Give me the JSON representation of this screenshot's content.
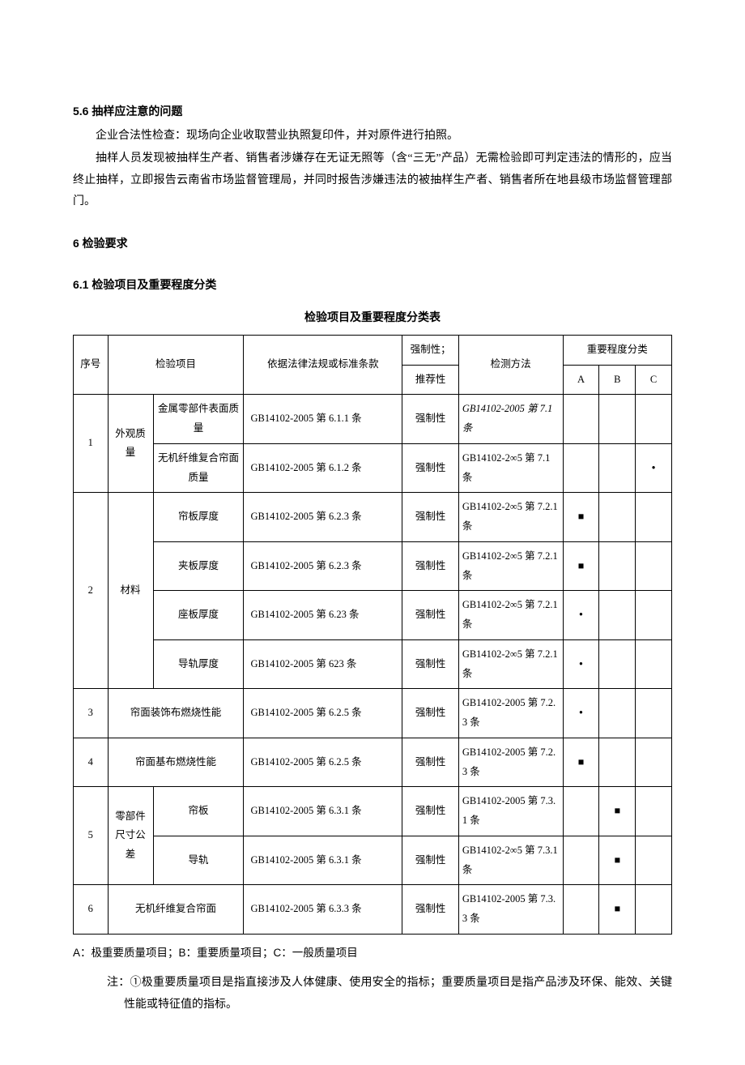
{
  "sections": {
    "s56_heading": "5.6  抽样应注意的问题",
    "s56_p1": "企业合法性检查：现场向企业收取营业执照复印件，并对原件进行拍照。",
    "s56_p2": "抽样人员发现被抽样生产者、销售者涉嫌存在无证无照等（含“三无”产品）无需检验即可判定违法的情形的，应当终止抽样，立即报告云南省市场监督管理局，并同时报告涉嫌违法的被抽样生产者、销售者所在地县级市场监督管理部门。",
    "s6_heading": "6 检验要求",
    "s61_heading": "6.1  检验项目及重要程度分类",
    "table_title": "检验项目及重要程度分类表"
  },
  "table": {
    "headers": {
      "idx": "序号",
      "item": "检验项目",
      "basis": "依据法律法规或标准条款",
      "type_top": "强制性；",
      "type_bot": "推荐性",
      "method": "检测方法",
      "importance": "重要程度分类",
      "a": "A",
      "b": "B",
      "c": "C"
    },
    "rows": [
      {
        "idx": "1",
        "cat": "外观质量",
        "sub": "金属零部件表面质量",
        "basis": "GB14102-2005 第 6.1.1 条",
        "type": "强制性",
        "method": "GB14102-2005 第 7.1 条",
        "a": "",
        "b": "",
        "c": ""
      },
      {
        "idx": "",
        "cat": "",
        "sub": "无机纤维复合帘面质量",
        "basis": "GB14102-2005 第 6.1.2 条",
        "type": "强制性",
        "method": "GB14102-2∞5 第 7.1 条",
        "a": "",
        "b": "",
        "c": "•"
      },
      {
        "idx": "2",
        "cat": "材料",
        "sub": "帘板厚度",
        "basis": "GB14102-2005 第 6.2.3 条",
        "type": "强制性",
        "method": "GB14102-2∞5 第 7.2.1 条",
        "a": "■",
        "b": "",
        "c": ""
      },
      {
        "idx": "",
        "cat": "",
        "sub": "夹板厚度",
        "basis": "GB14102-2005 第 6.2.3 条",
        "type": "强制性",
        "method": "GB14102-2∞5 第 7.2.1 条",
        "a": "■",
        "b": "",
        "c": ""
      },
      {
        "idx": "",
        "cat": "",
        "sub": "座板厚度",
        "basis": "GB14102-2005 第 6.23 条",
        "type": "强制性",
        "method": "GB14102-2∞5 第 7.2.1 条",
        "a": "•",
        "b": "",
        "c": ""
      },
      {
        "idx": "",
        "cat": "",
        "sub": "导轨厚度",
        "basis": "GB14102-2005 第 623 条",
        "type": "强制性",
        "method": "GB14102-2∞5 第 7.2.1 条",
        "a": "•",
        "b": "",
        "c": ""
      },
      {
        "idx": "3",
        "cat": "帘面装饰布燃烧性能",
        "sub": "",
        "basis": "GB14102-2005 第 6.2.5 条",
        "type": "强制性",
        "method": "GB14102-2005 第 7.2.3 条",
        "a": "•",
        "b": "",
        "c": ""
      },
      {
        "idx": "4",
        "cat": "帘面基布燃烧性能",
        "sub": "",
        "basis": "GB14102-2005 第 6.2.5 条",
        "type": "强制性",
        "method": "GB14102-2005 第 7.2.3 条",
        "a": "■",
        "b": "",
        "c": ""
      },
      {
        "idx": "5",
        "cat": "零部件尺寸公差",
        "sub": "帘板",
        "basis": "GB14102-2005 第 6.3.1 条",
        "type": "强制性",
        "method": "GB14102-2005 第 7.3.1 条",
        "a": "",
        "b": "■",
        "c": ""
      },
      {
        "idx": "",
        "cat": "",
        "sub": "导轨",
        "basis": "GB14102-2005 第 6.3.1 条",
        "type": "强制性",
        "method": "GB14102-2∞5 第 7.3.1 条",
        "a": "",
        "b": "■",
        "c": ""
      },
      {
        "idx": "6",
        "cat": "无机纤维复合帘面",
        "sub": "",
        "basis": "GB14102-2005 第 6.3.3 条",
        "type": "强制性",
        "method": "GB14102-2005 第 7.3.3 条",
        "a": "",
        "b": "■",
        "c": ""
      }
    ]
  },
  "legend": "A：极重要质量项目；B：重要质量项目；C：一般质量项目",
  "note": "注：①极重要质量项目是指直接涉及人体健康、使用安全的指标；重要质量项目是指产品涉及环保、能效、关键性能或特征值的指标。"
}
